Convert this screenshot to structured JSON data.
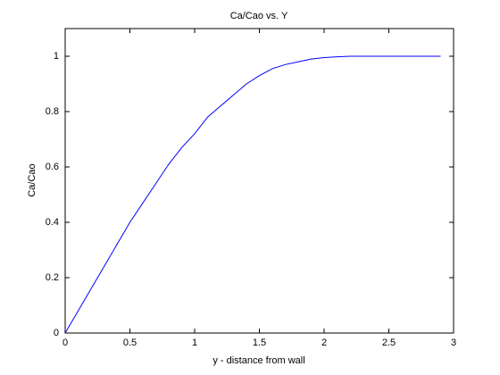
{
  "chart_data": {
    "type": "line",
    "title": "Ca/Cao vs. Y",
    "x_label": "y - distance from wall",
    "y_label": "Ca/Cao",
    "x": [
      0,
      0.1,
      0.2,
      0.3,
      0.4,
      0.5,
      0.6,
      0.7,
      0.8,
      0.9,
      1.0,
      1.1,
      1.2,
      1.3,
      1.4,
      1.5,
      1.6,
      1.7,
      1.8,
      1.9,
      2.0,
      2.1,
      2.2,
      2.3,
      2.4,
      2.5,
      2.6,
      2.7,
      2.8,
      2.9
    ],
    "series": [
      {
        "color": "#0000ff",
        "values": [
          0,
          0.08,
          0.16,
          0.24,
          0.32,
          0.4,
          0.47,
          0.54,
          0.61,
          0.67,
          0.72,
          0.78,
          0.82,
          0.86,
          0.9,
          0.93,
          0.955,
          0.97,
          0.98,
          0.99,
          0.995,
          0.998,
          1,
          1,
          1,
          1,
          1,
          1,
          1,
          1
        ]
      }
    ],
    "xlim": [
      0,
      3
    ],
    "xticks": [
      0,
      0.5,
      1,
      1.5,
      2,
      2.5,
      3
    ],
    "ylim": [
      0,
      1.1
    ],
    "yticks": [
      0,
      0.2,
      0.4,
      0.6,
      0.8,
      1
    ],
    "grid": false
  }
}
